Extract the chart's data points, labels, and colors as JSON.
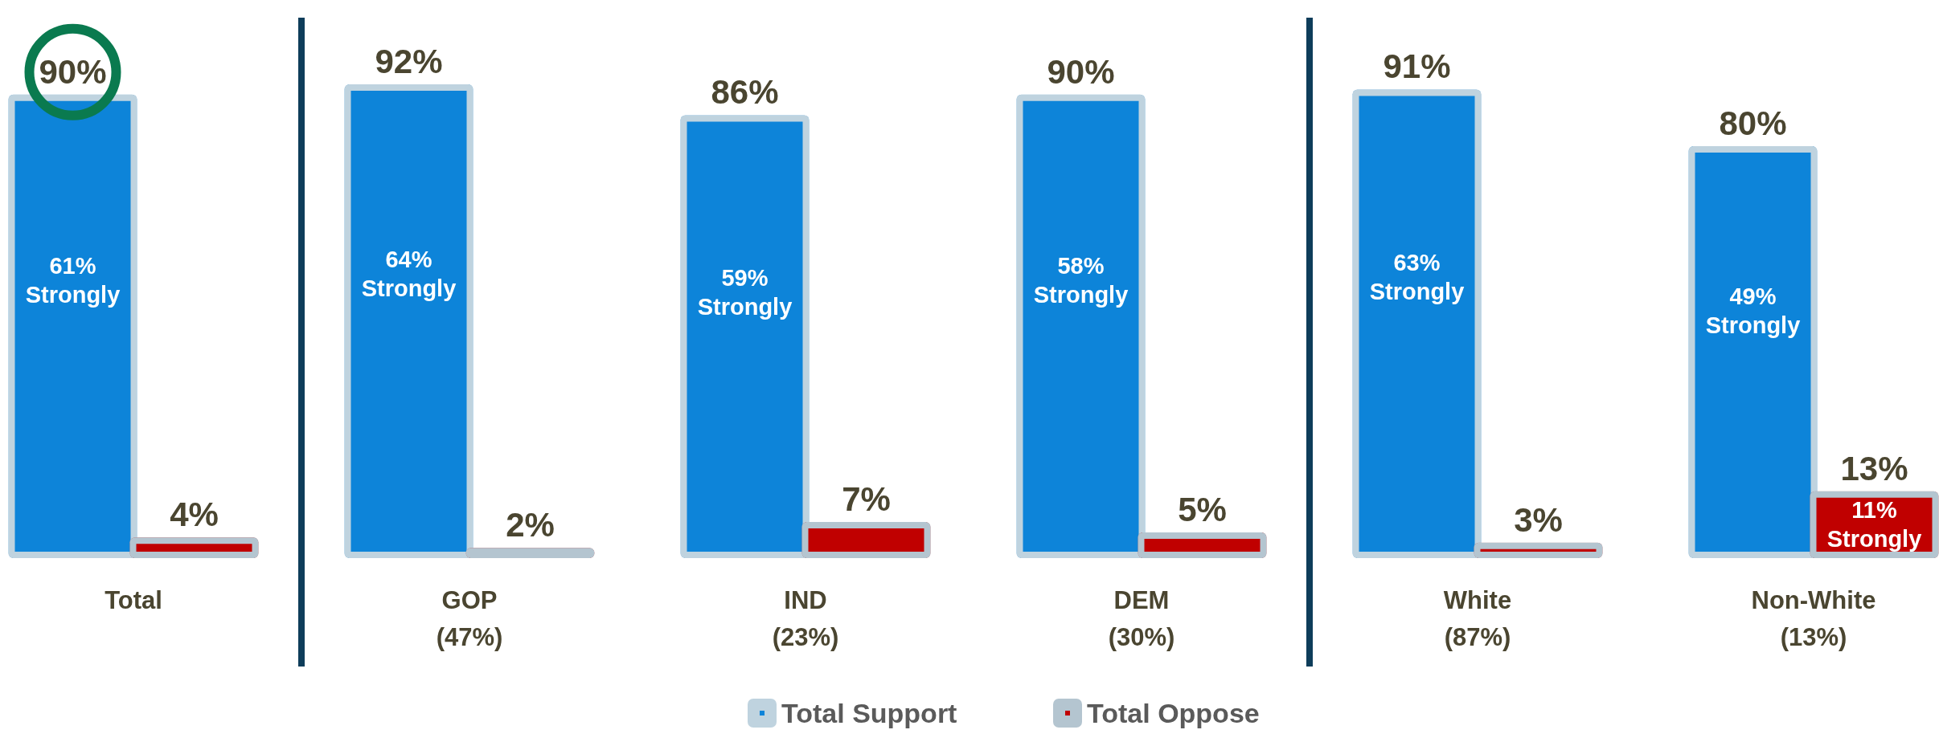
{
  "chart_data": {
    "type": "bar",
    "categories": [
      "Total",
      "GOP\n(47%)",
      "IND\n(23%)",
      "DEM\n(30%)",
      "White\n(87%)",
      "Non-White\n(13%)"
    ],
    "series": [
      {
        "name": "Total Support",
        "color": "#0d84d9",
        "values": [
          90,
          92,
          86,
          90,
          91,
          80
        ],
        "value_labels": [
          "90%",
          "92%",
          "86%",
          "90%",
          "91%",
          "80%"
        ]
      },
      {
        "name": "Total Oppose",
        "color": "#c00000",
        "values": [
          4,
          2,
          7,
          5,
          3,
          13
        ],
        "value_labels": [
          "4%",
          "2%",
          "7%",
          "5%",
          "3%",
          "13%"
        ]
      }
    ],
    "annotations": [
      "61% Strongly",
      "64% Strongly",
      "59% Strongly",
      "58% Strongly",
      "63% Strongly",
      "49% Strongly",
      "11% Strongly"
    ],
    "legend": "bottom"
  }
}
